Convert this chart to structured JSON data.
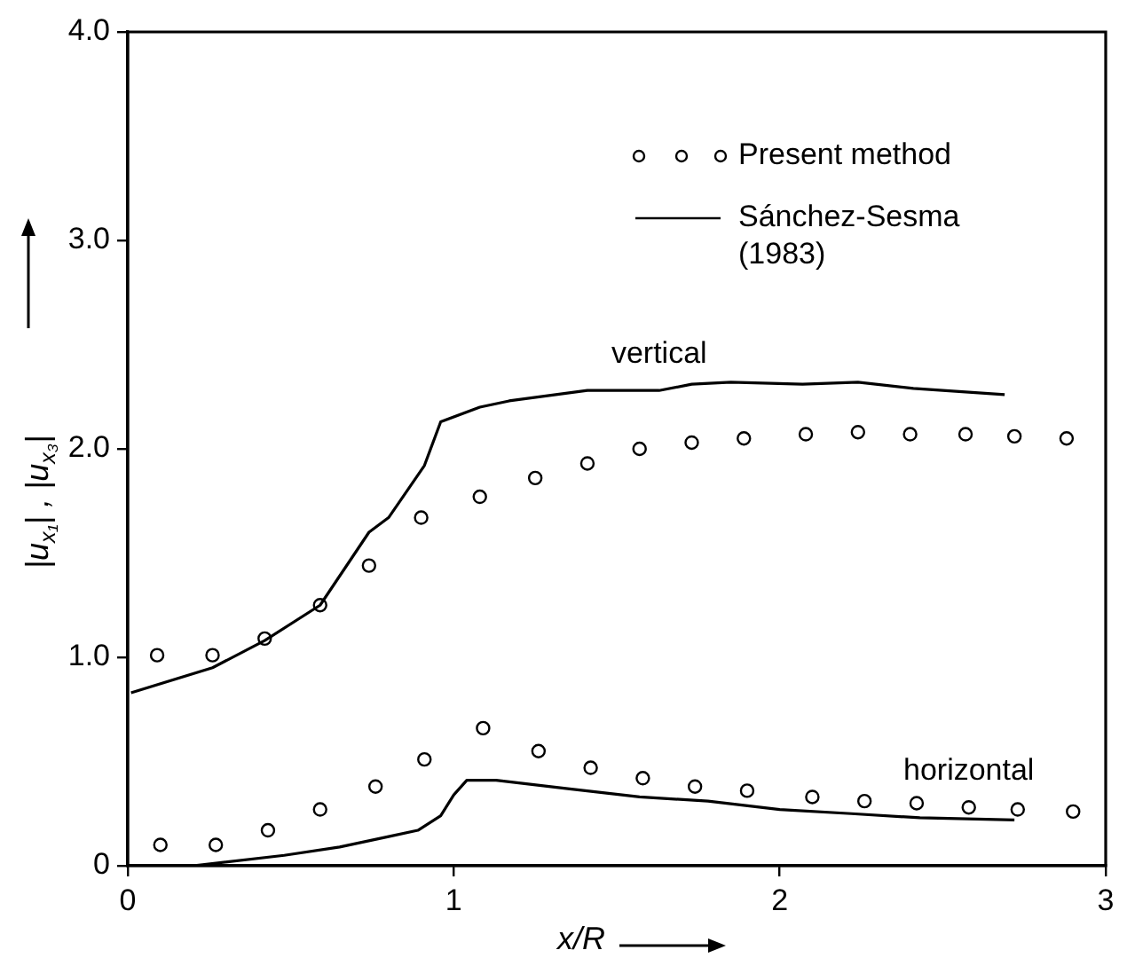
{
  "chart_data": {
    "type": "scatter",
    "xlabel": "x/R",
    "ylabel": "|u$_{x₁}$| , |u$_{x₃}$|",
    "xlim": [
      0,
      3
    ],
    "xticks": [
      0,
      1,
      2,
      3
    ],
    "ylim": [
      0,
      4
    ],
    "yticks": [
      {
        "value": 0,
        "label": "0"
      },
      {
        "value": 1,
        "label": "1.0"
      },
      {
        "value": 2,
        "label": "2.0"
      },
      {
        "value": 3,
        "label": "3.0"
      },
      {
        "value": 4,
        "label": "4.0"
      }
    ],
    "grid": false,
    "legend": "top right",
    "series": [
      {
        "name": "Present method",
        "type": "scatter",
        "marker": "circle",
        "color": "#000000",
        "x": [
          0.09,
          0.26,
          0.42,
          0.59,
          0.74,
          0.9,
          1.08,
          1.25,
          1.41,
          1.57,
          1.73,
          1.89,
          2.08,
          2.24,
          2.4,
          2.57,
          2.72,
          2.88
        ],
        "values": [
          1.01,
          1.01,
          1.09,
          1.25,
          1.44,
          1.67,
          1.77,
          1.86,
          1.93,
          2.0,
          2.03,
          2.05,
          2.07,
          2.08,
          2.07,
          2.07,
          2.06,
          2.05
        ]
      },
      {
        "type": "scatter",
        "marker": "circle",
        "color": "#000000",
        "x": [
          0.1,
          0.27,
          0.43,
          0.59,
          0.76,
          0.91,
          1.09,
          1.26,
          1.42,
          1.58,
          1.74,
          1.9,
          2.1,
          2.26,
          2.42,
          2.58,
          2.73,
          2.9
        ],
        "values": [
          0.1,
          0.1,
          0.17,
          0.27,
          0.38,
          0.51,
          0.66,
          0.55,
          0.47,
          0.42,
          0.38,
          0.36,
          0.33,
          0.31,
          0.3,
          0.28,
          0.27,
          0.26
        ]
      },
      {
        "name": "Sánchez-Sesma (1983)",
        "type": "line",
        "marker": "none",
        "line_style": "solid",
        "color": "#000000",
        "x": [
          0.01,
          0.26,
          0.42,
          0.59,
          0.74,
          0.8,
          0.91,
          0.96,
          1.08,
          1.17,
          1.41,
          1.63,
          1.73,
          1.85,
          2.07,
          2.24,
          2.41,
          2.69
        ],
        "values": [
          0.83,
          0.95,
          1.08,
          1.25,
          1.6,
          1.67,
          1.92,
          2.13,
          2.2,
          2.23,
          2.28,
          2.28,
          2.31,
          2.32,
          2.31,
          2.32,
          2.29,
          2.26
        ]
      },
      {
        "type": "line",
        "marker": "none",
        "line_style": "solid",
        "color": "#000000",
        "x": [
          0.2,
          0.48,
          0.65,
          0.8,
          0.89,
          0.96,
          1.0,
          1.04,
          1.13,
          1.35,
          1.57,
          1.78,
          2.0,
          2.22,
          2.43,
          2.72
        ],
        "values": [
          0,
          0.05,
          0.09,
          0.14,
          0.17,
          0.24,
          0.34,
          0.41,
          0.41,
          0.37,
          0.33,
          0.31,
          0.27,
          0.25,
          0.23,
          0.22
        ]
      }
    ],
    "annotations": [
      {
        "text": "vertical",
        "x": 1.63,
        "y": 2.28
      },
      {
        "text": "horizontal",
        "x": 2.58,
        "y": 0.28
      }
    ]
  }
}
